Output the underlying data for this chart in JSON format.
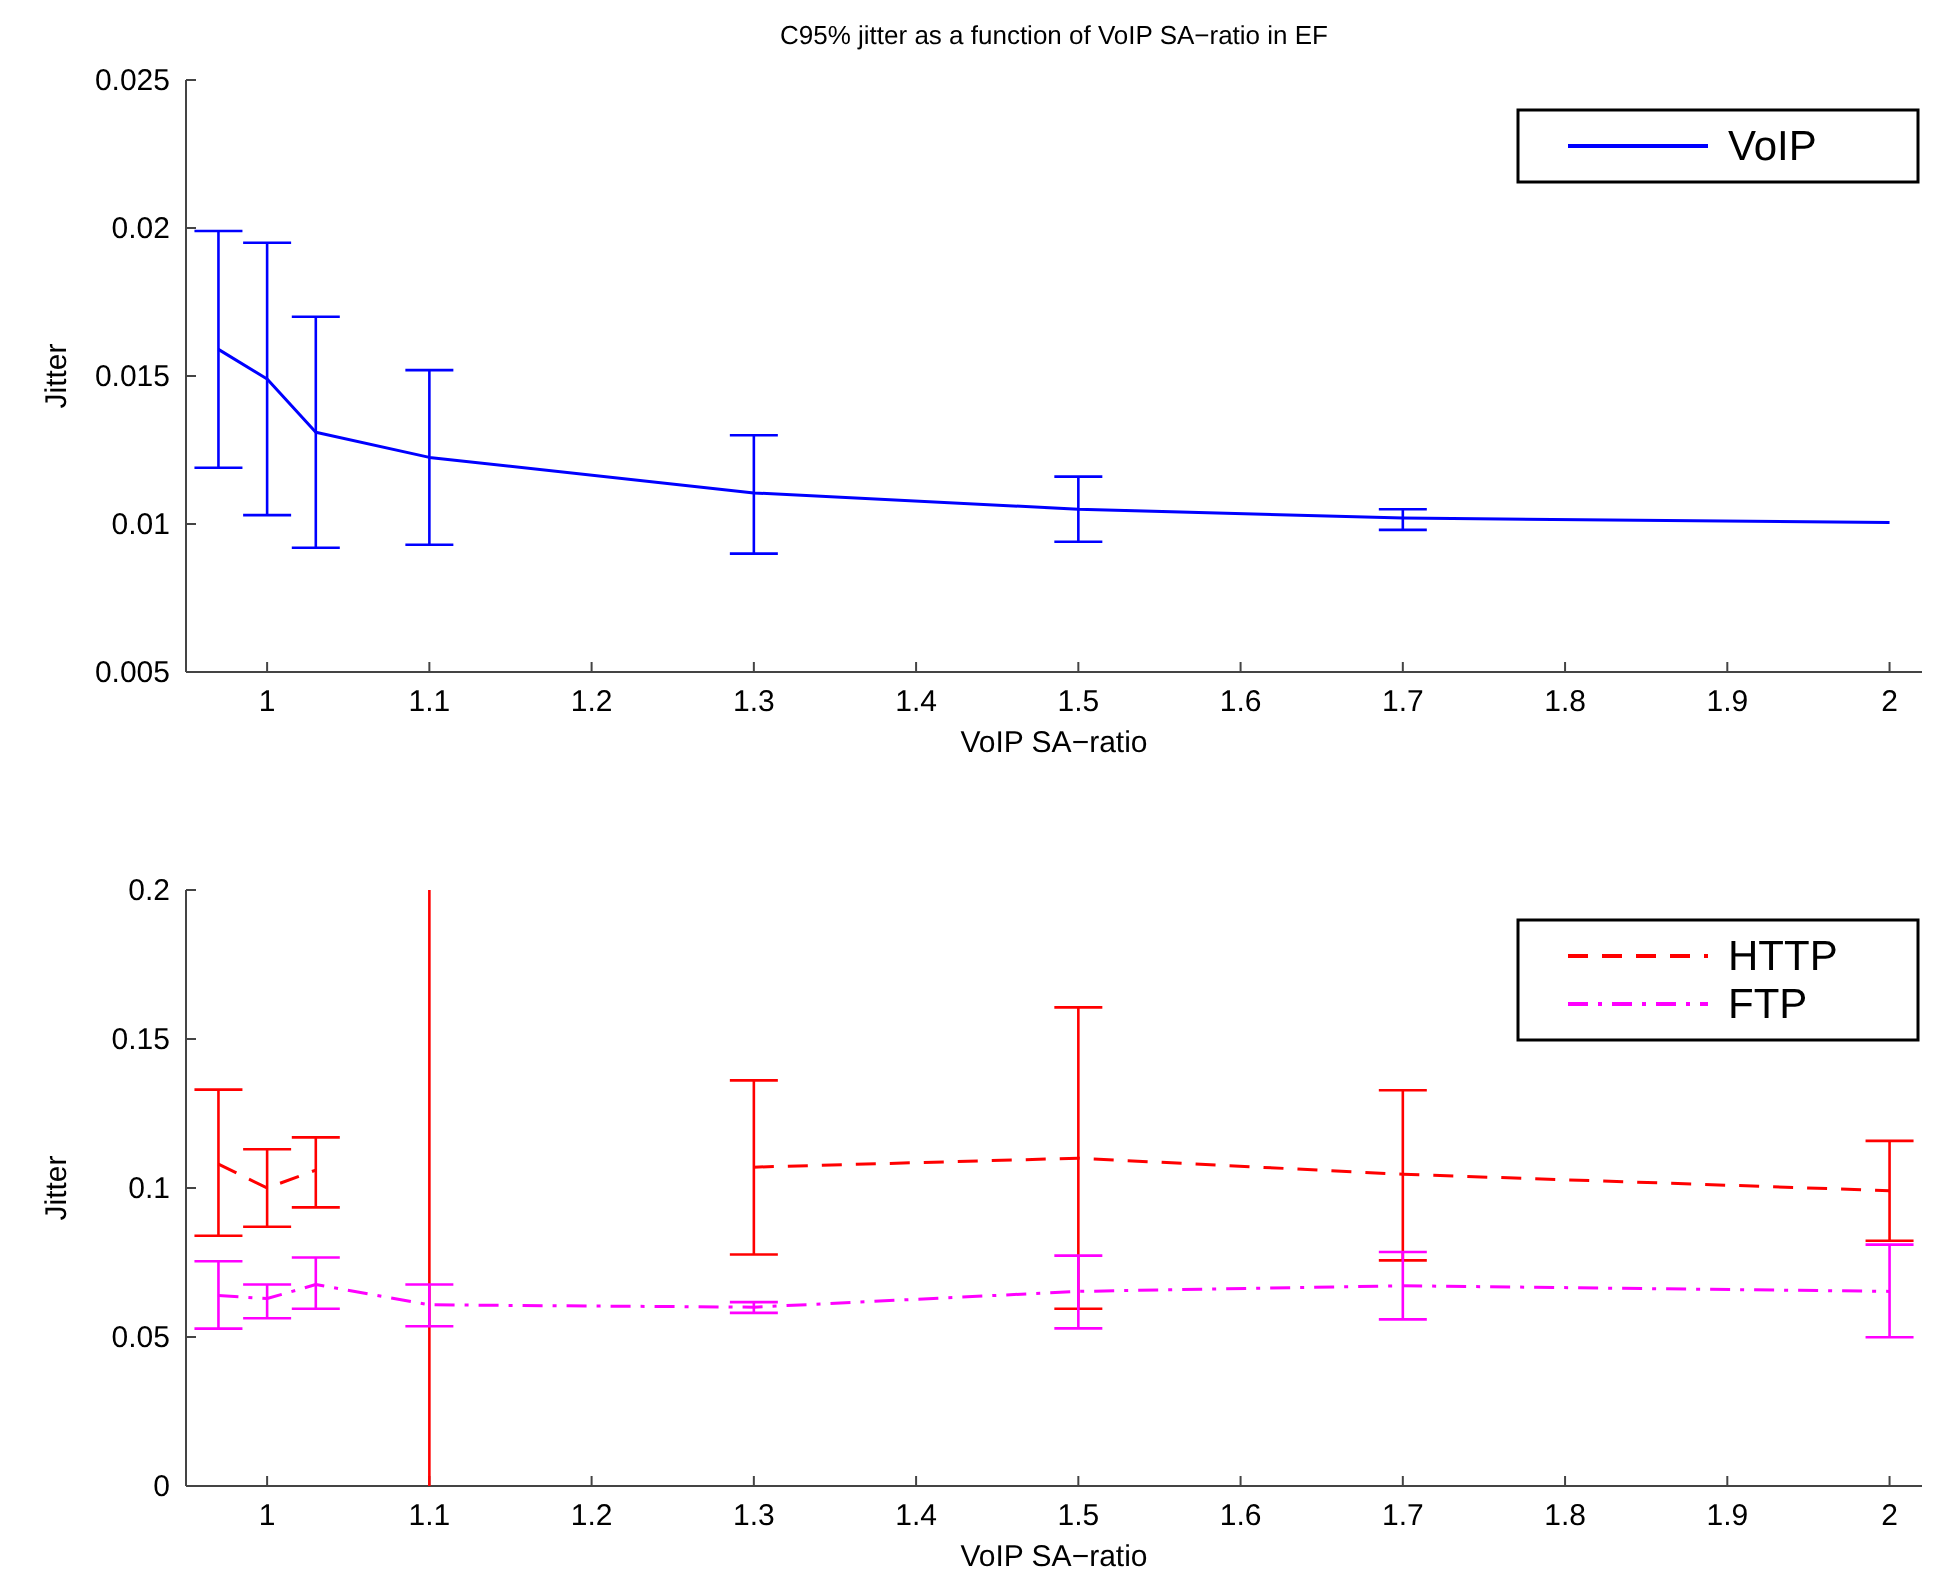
{
  "chart_data": [
    {
      "type": "line",
      "title": "C95% jitter as a function of VoIP SA−ratio in EF",
      "xlabel": "VoIP SA−ratio",
      "ylabel": "Jitter",
      "x": [
        0.97,
        1,
        1.03,
        1.1,
        1.3,
        1.5,
        1.7,
        2
      ],
      "series": [
        {
          "name": "VoIP",
          "color": "#0000ff",
          "line_style": "solid",
          "values": [
            0.0159,
            0.0149,
            0.0131,
            0.01225,
            0.01105,
            0.0105,
            0.0102,
            0.01005
          ],
          "errors": [
            [
              0.0119,
              0.0199
            ],
            [
              0.0103,
              0.0195
            ],
            [
              0.0092,
              0.017
            ],
            [
              0.0093,
              0.0152
            ],
            [
              0.009,
              0.013
            ],
            [
              0.0094,
              0.0116
            ],
            [
              0.0098,
              0.0105
            ],
            null
          ]
        }
      ],
      "xlim": [
        0.95,
        2.02
      ],
      "xticks": [
        1,
        1.1,
        1.2,
        1.3,
        1.4,
        1.5,
        1.6,
        1.7,
        1.8,
        1.9,
        2
      ],
      "ylim": [
        0.005,
        0.025
      ],
      "yticks": [
        0.005,
        0.01,
        0.015,
        0.02,
        0.025
      ],
      "legend": "top right",
      "grid": false,
      "marker": "none"
    },
    {
      "type": "line",
      "xlabel": "VoIP SA−ratio",
      "ylabel": "Jitter",
      "x": [
        0.97,
        1,
        1.03,
        1.1,
        1.3,
        1.5,
        1.7,
        2
      ],
      "series": [
        {
          "name": "HTTP",
          "color": "#ff0000",
          "line_style": "dashed",
          "values": [
            0.108,
            0.1,
            0.106,
            null,
            0.107,
            0.11,
            0.1046,
            0.0991
          ],
          "errors": [
            [
              0.084,
              0.133
            ],
            [
              0.087,
              0.113
            ],
            [
              0.0935,
              0.117
            ],
            null,
            [
              0.0777,
              0.1361
            ],
            [
              0.0595,
              0.1606
            ],
            [
              0.0757,
              0.1328
            ],
            [
              0.0823,
              0.1158
            ]
          ]
        },
        {
          "name": "FTP",
          "color": "#ff00ff",
          "line_style": "dashdot",
          "values": [
            0.0639,
            0.0629,
            0.0676,
            0.0608,
            0.06,
            0.0653,
            0.0672,
            0.0653
          ],
          "errors": [
            [
              0.0528,
              0.0754
            ],
            [
              0.0563,
              0.0676
            ],
            [
              0.0595,
              0.0767
            ],
            [
              0.0536,
              0.0676
            ],
            [
              0.0581,
              0.0617
            ],
            [
              0.0529,
              0.0773
            ],
            [
              0.0559,
              0.0785
            ],
            [
              0.0499,
              0.081
            ]
          ]
        }
      ],
      "ref_lines": [
        {
          "axis": "x",
          "value": 1.1,
          "color": "#ff0000"
        }
      ],
      "xlim": [
        0.95,
        2.02
      ],
      "xticks": [
        1,
        1.1,
        1.2,
        1.3,
        1.4,
        1.5,
        1.6,
        1.7,
        1.8,
        1.9,
        2
      ],
      "ylim": [
        0,
        0.2
      ],
      "yticks": [
        0,
        0.05,
        0.1,
        0.15,
        0.2
      ],
      "legend": "top right",
      "grid": false,
      "marker": "none"
    }
  ]
}
